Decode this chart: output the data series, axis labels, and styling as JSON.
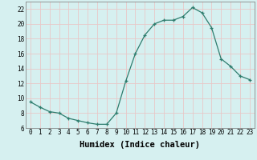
{
  "x": [
    0,
    1,
    2,
    3,
    4,
    5,
    6,
    7,
    8,
    9,
    10,
    11,
    12,
    13,
    14,
    15,
    16,
    17,
    18,
    19,
    20,
    21,
    22,
    23
  ],
  "y": [
    9.5,
    8.8,
    8.2,
    8.0,
    7.3,
    7.0,
    6.7,
    6.5,
    6.5,
    8.0,
    12.3,
    16.0,
    18.5,
    20.0,
    20.5,
    20.5,
    21.0,
    22.2,
    21.5,
    19.5,
    15.3,
    14.3,
    13.0,
    12.5
  ],
  "line_color": "#2e7d6e",
  "marker": "+",
  "marker_color": "#2e7d6e",
  "bg_color": "#d6f0f0",
  "grid_color": "#e8c8c8",
  "xlabel": "Humidex (Indice chaleur)",
  "xlim": [
    -0.5,
    23.5
  ],
  "ylim": [
    6,
    23
  ],
  "yticks": [
    6,
    8,
    10,
    12,
    14,
    16,
    18,
    20,
    22
  ],
  "xticks": [
    0,
    1,
    2,
    3,
    4,
    5,
    6,
    7,
    8,
    9,
    10,
    11,
    12,
    13,
    14,
    15,
    16,
    17,
    18,
    19,
    20,
    21,
    22,
    23
  ],
  "xtick_labels": [
    "0",
    "1",
    "2",
    "3",
    "4",
    "5",
    "6",
    "7",
    "8",
    "9",
    "10",
    "11",
    "12",
    "13",
    "14",
    "15",
    "16",
    "17",
    "18",
    "19",
    "20",
    "21",
    "22",
    "23"
  ],
  "tick_fontsize": 5.5,
  "xlabel_fontsize": 7.5
}
